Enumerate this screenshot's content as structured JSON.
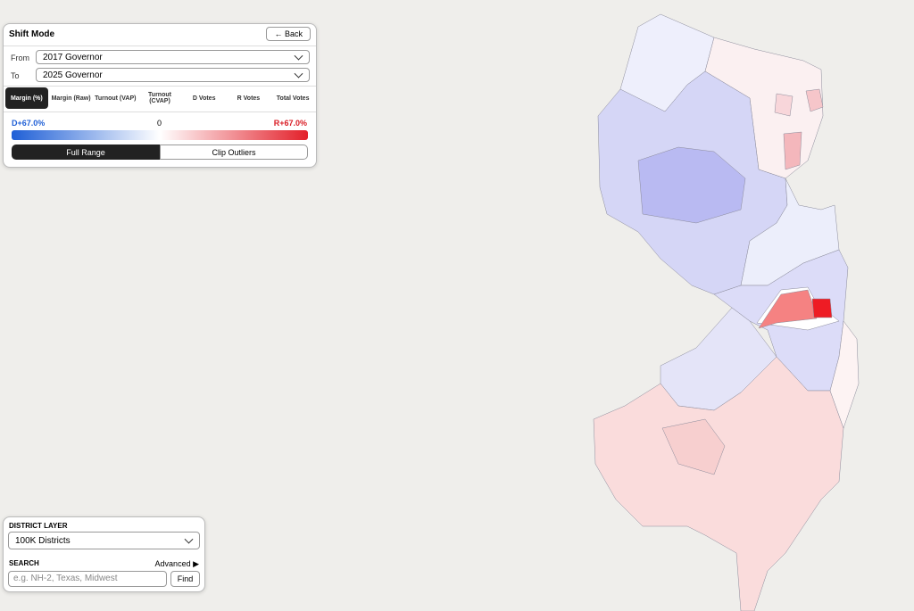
{
  "panel": {
    "title": "Shift Mode",
    "back": "← Back",
    "from_label": "From",
    "from_value": "2017 Governor",
    "to_label": "To",
    "to_value": "2025 Governor",
    "tabs": [
      "Margin (%)",
      "Margin (Raw)",
      "Turnout (VAP)",
      "Turnout (CVAP)",
      "D Votes",
      "R Votes",
      "Total Votes"
    ],
    "legend": {
      "left": "D+67.0%",
      "center": "0",
      "right": "R+67.0%"
    },
    "range_buttons": [
      "Full Range",
      "Clip Outliers"
    ]
  },
  "layer_panel": {
    "layer_label": "DISTRICT LAYER",
    "layer_value": "100K Districts",
    "search_label": "SEARCH",
    "advanced": "Advanced ▶",
    "search_placeholder": "e.g. NH-2, Texas, Midwest",
    "find": "Find"
  }
}
